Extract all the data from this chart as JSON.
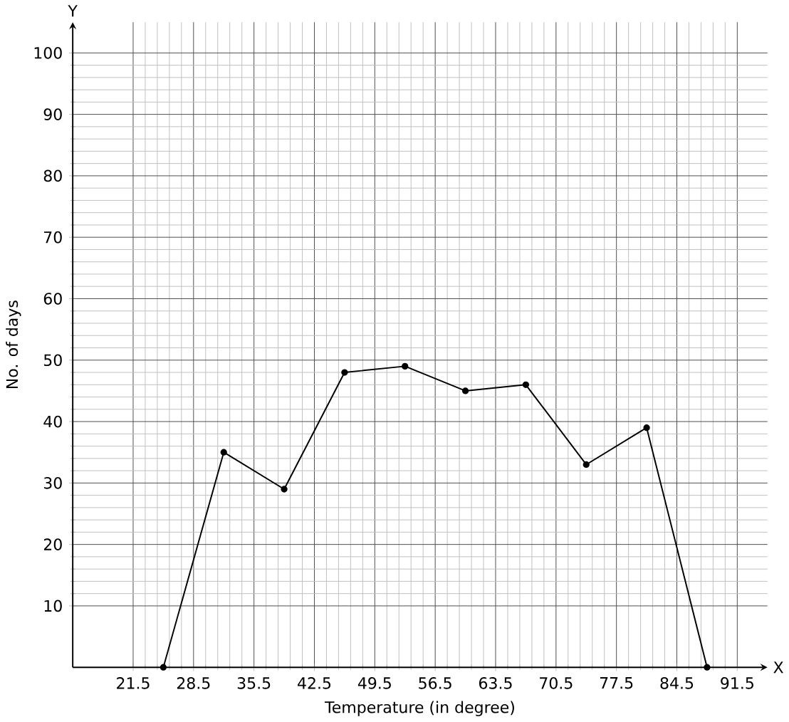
{
  "chart_data": {
    "type": "line",
    "xlabel": "Temperature (in degree)",
    "ylabel": "No. of days",
    "annotations": [
      "X",
      "Y"
    ],
    "x": [
      25,
      32,
      39,
      46,
      53,
      60,
      67,
      74,
      81,
      88
    ],
    "series": [
      {
        "color": "#000000",
        "values": [
          0,
          35,
          29,
          48,
          49,
          45,
          46,
          33,
          39,
          0
        ]
      }
    ],
    "xlim": [
      14.5,
      95
    ],
    "ylim": [
      0,
      105
    ],
    "xticks": [
      21.5,
      28.5,
      35.5,
      42.5,
      49.5,
      56.5,
      63.5,
      70.5,
      77.5,
      84.5,
      91.5
    ],
    "yticks": [
      10,
      20,
      30,
      40,
      50,
      60,
      70,
      80,
      90,
      100
    ],
    "grid": true,
    "marker": "circle",
    "line_style": "solid"
  }
}
